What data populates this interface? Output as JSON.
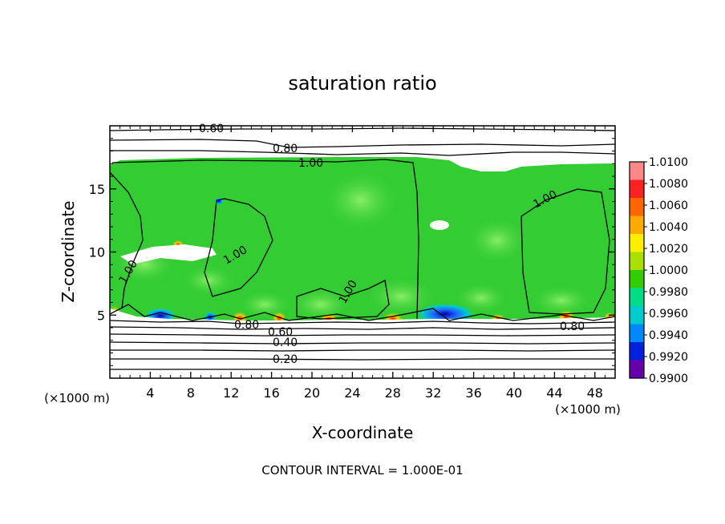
{
  "chart_data": {
    "type": "heatmap",
    "title": "saturation ratio",
    "xlabel": "X-coordinate",
    "ylabel": "Z-coordinate",
    "x_unit": "(×1000 m)",
    "z_unit": "(×1000 m)",
    "xlim": [
      0,
      50
    ],
    "ylim": [
      0,
      20
    ],
    "x_ticks": [
      4,
      8,
      12,
      16,
      20,
      24,
      28,
      32,
      36,
      40,
      44,
      48
    ],
    "y_ticks": [
      5,
      10,
      15
    ],
    "footer": "CONTOUR INTERVAL = 1.000E-01",
    "contour_labels": [
      "0.60",
      "0.80",
      "1.00",
      "1.00",
      "1.00",
      "1.00",
      "1.00",
      "0.80",
      "0.60",
      "0.40",
      "0.20",
      "0.80"
    ],
    "colorbar": {
      "labels": [
        "1.0100",
        "1.0080",
        "1.0060",
        "1.0040",
        "1.0020",
        "1.0000",
        "0.9980",
        "0.9960",
        "0.9940",
        "0.9920",
        "0.9900"
      ],
      "colors": [
        "#ff8888",
        "#ff2222",
        "#ff6600",
        "#ffaa00",
        "#ffee00",
        "#aae000",
        "#33cc00",
        "#00dd88",
        "#00cccc",
        "#0088ff",
        "#0022dd",
        "#6600aa"
      ]
    },
    "field_colors": {
      "background": "#33cc33",
      "light": "#66e066",
      "low": "#1e6cff",
      "deep_low": "#0000aa",
      "high": "#ff2200",
      "dry": "#ffffff"
    }
  }
}
